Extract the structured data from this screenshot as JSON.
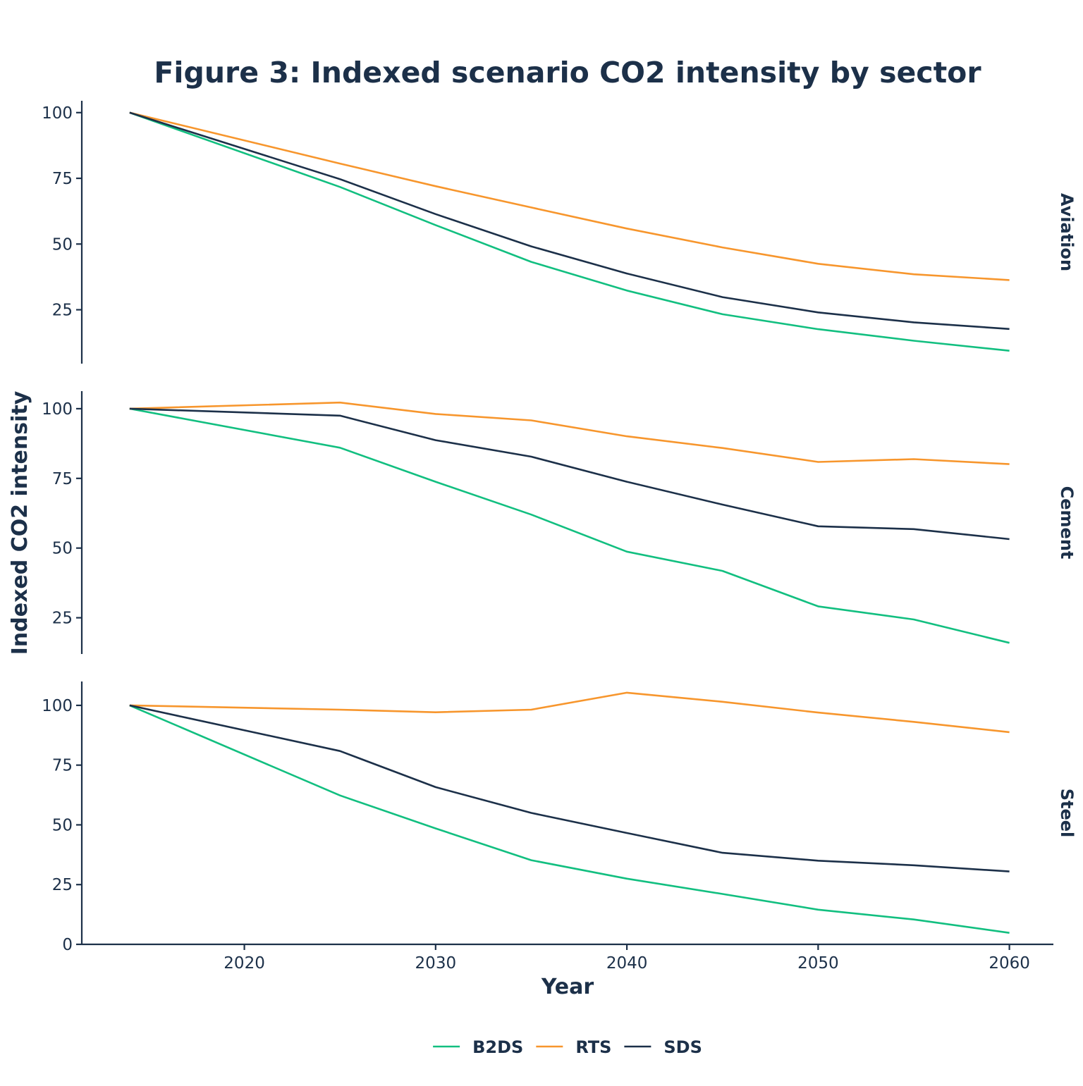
{
  "chart_data": {
    "type": "line",
    "title": "Figure 3: Indexed scenario CO2 intensity by sector",
    "xlabel": "Year",
    "ylabel": "Indexed CO2 intensity",
    "x": [
      2014,
      2025,
      2030,
      2035,
      2040,
      2045,
      2050,
      2055,
      2060
    ],
    "x_ticks": [
      2020,
      2030,
      2040,
      2050,
      2060
    ],
    "xlim": [
      2011.5,
      2062.3
    ],
    "legend_position": "bottom",
    "series_styles": [
      {
        "name": "B2DS",
        "color": "#12bf80"
      },
      {
        "name": "RTS",
        "color": "#f7962d"
      },
      {
        "name": "SDS",
        "color": "#1c3049"
      }
    ],
    "panels": [
      {
        "label": "Aviation",
        "ylim": [
          4.5,
          104.5
        ],
        "y_ticks": [
          25,
          50,
          75,
          100
        ],
        "series": [
          {
            "name": "B2DS",
            "values": [
              100,
              71.7,
              57.2,
              43.2,
              32.3,
              23.3,
              17.6,
              13.2,
              9.4
            ]
          },
          {
            "name": "RTS",
            "values": [
              100,
              80.6,
              72.0,
              63.9,
              55.9,
              48.7,
              42.5,
              38.5,
              36.3
            ]
          },
          {
            "name": "SDS",
            "values": [
              100,
              74.7,
              61.4,
              49.1,
              38.8,
              29.8,
              24.0,
              20.2,
              17.7
            ]
          }
        ]
      },
      {
        "label": "Cement",
        "ylim": [
          12.0,
          106.3
        ],
        "y_ticks": [
          25,
          50,
          75,
          100
        ],
        "series": [
          {
            "name": "B2DS",
            "values": [
              100,
              86.0,
              73.8,
              62.0,
              48.7,
              41.8,
              29.1,
              24.4,
              16.0
            ]
          },
          {
            "name": "RTS",
            "values": [
              100,
              102.2,
              98.1,
              95.8,
              90.1,
              85.9,
              80.9,
              81.9,
              80.1
            ]
          },
          {
            "name": "SDS",
            "values": [
              100,
              97.5,
              88.7,
              82.8,
              73.8,
              65.6,
              57.8,
              56.8,
              53.2
            ]
          }
        ]
      },
      {
        "label": "Steel",
        "ylim": [
          0,
          110
        ],
        "y_ticks": [
          0,
          25,
          50,
          75,
          100
        ],
        "series": [
          {
            "name": "B2DS",
            "values": [
              100,
              62.3,
              48.5,
              35.2,
              27.5,
              21.1,
              14.5,
              10.4,
              4.8
            ]
          },
          {
            "name": "RTS",
            "values": [
              100,
              98.2,
              97.1,
              98.2,
              105.3,
              101.5,
              97.0,
              93.1,
              88.8
            ]
          },
          {
            "name": "SDS",
            "values": [
              100,
              80.9,
              65.8,
              55.0,
              46.6,
              38.3,
              35.0,
              33.1,
              30.5
            ]
          }
        ]
      }
    ]
  },
  "legend": {
    "items": [
      {
        "label": "B2DS",
        "color": "#12bf80"
      },
      {
        "label": "RTS",
        "color": "#f7962d"
      },
      {
        "label": "SDS",
        "color": "#1c3049"
      }
    ]
  }
}
